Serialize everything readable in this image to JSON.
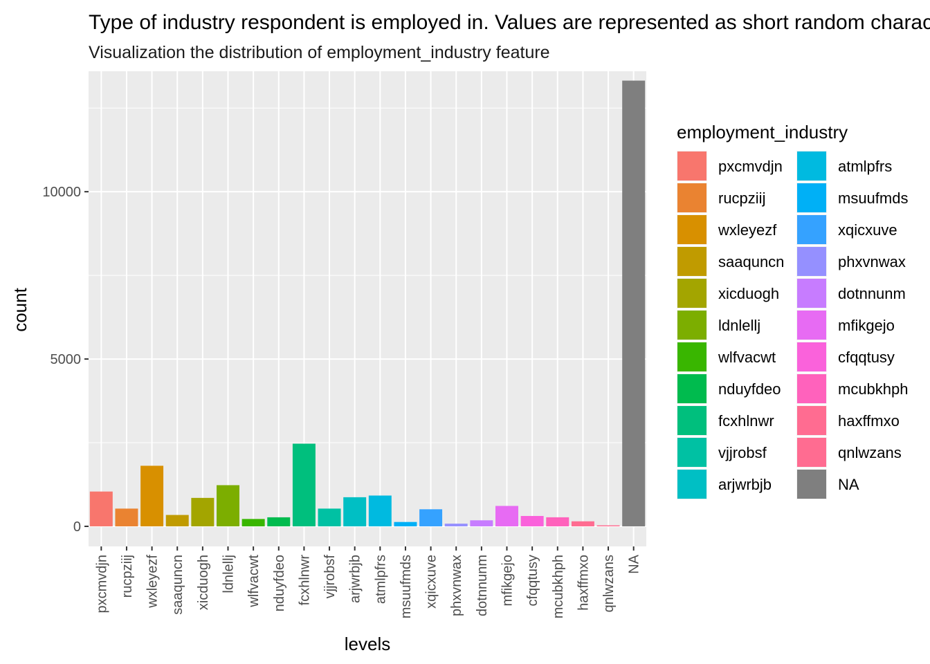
{
  "chart_data": {
    "type": "bar",
    "title": "Type of industry respondent is employed in. Values are represented as short random character strings.",
    "subtitle": "Visualization the distribution of employment_industry feature",
    "xlabel": "levels",
    "ylabel": "count",
    "ylim": [
      -600,
      13600
    ],
    "yticks": [
      0,
      5000,
      10000
    ],
    "ytick_labels": [
      "0",
      "5000",
      "10000"
    ],
    "grid": true,
    "legend_title": "employment_industry",
    "legend_position": "right",
    "categories": [
      "pxcmvdjn",
      "rucpziij",
      "wxleyezf",
      "saaquncn",
      "xicduogh",
      "ldnlellj",
      "wlfvacwt",
      "nduyfdeo",
      "fcxhlnwr",
      "vjjrobsf",
      "arjwrbjb",
      "atmlpfrs",
      "msuufmds",
      "xqicxuve",
      "phxvnwax",
      "dotnnunm",
      "mfikgejo",
      "cfqqtusy",
      "mcubkhph",
      "haxffmxo",
      "qnlwzans",
      "NA"
    ],
    "values": [
      1040,
      530,
      1810,
      340,
      850,
      1230,
      220,
      270,
      2470,
      530,
      870,
      920,
      130,
      510,
      80,
      180,
      610,
      310,
      270,
      150,
      30,
      13320
    ],
    "colors": [
      "#F8766D",
      "#EA8331",
      "#D89000",
      "#C09B00",
      "#A3A500",
      "#7CAE00",
      "#39B600",
      "#00BB4E",
      "#00BF7D",
      "#00C1A3",
      "#00BFC4",
      "#00BAE0",
      "#00B0F6",
      "#35A2FF",
      "#9590FF",
      "#C77CFF",
      "#E76BF3",
      "#FA62DB",
      "#FF62BC",
      "#FF6C91",
      "#FF6C91",
      "#7F7F7F"
    ]
  },
  "colors": {
    "panel_background": "#EBEBEB",
    "grid_major": "#FFFFFF",
    "axis_text": "#4D4D4D"
  }
}
